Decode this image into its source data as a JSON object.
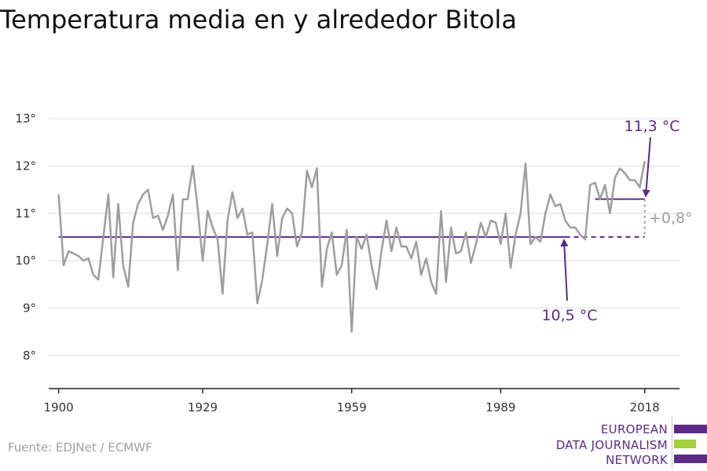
{
  "title": "Temperatura media en y alrededor Bitola",
  "source": "Fuente: EDJNet / ECMWF",
  "logo": {
    "lines": [
      "EUROPEAN",
      "DATA JOURNALISM",
      "NETWORK"
    ],
    "colors": {
      "purple": "#5b2a86",
      "green": "#a3d13a"
    }
  },
  "colors": {
    "series": "#9e9e9e",
    "baseline": "#5b2a86",
    "grid": "#dddddd",
    "axis": "#222222",
    "diff": "#9e9e9e"
  },
  "chart_data": {
    "type": "line",
    "title": "Temperatura media en y alrededor Bitola",
    "xlabel": "",
    "ylabel": "",
    "xlim": [
      1898,
      2025
    ],
    "ylim": [
      7.3,
      13.3
    ],
    "xticks": [
      1900,
      1929,
      1959,
      1989,
      2018
    ],
    "xtick_labels": [
      "1900",
      "1929",
      "1959",
      "1989",
      "2018"
    ],
    "yticks": [
      8,
      9,
      10,
      11,
      12,
      13
    ],
    "ytick_labels": [
      "8°",
      "9°",
      "10°",
      "11°",
      "12°",
      "13°"
    ],
    "grid": "horizontal",
    "x": [
      1900,
      1901,
      1902,
      1903,
      1904,
      1905,
      1906,
      1907,
      1908,
      1909,
      1910,
      1911,
      1912,
      1913,
      1914,
      1915,
      1916,
      1917,
      1918,
      1919,
      1920,
      1921,
      1922,
      1923,
      1924,
      1925,
      1926,
      1927,
      1928,
      1929,
      1930,
      1931,
      1932,
      1933,
      1934,
      1935,
      1936,
      1937,
      1938,
      1939,
      1940,
      1941,
      1942,
      1943,
      1944,
      1945,
      1946,
      1947,
      1948,
      1949,
      1950,
      1951,
      1952,
      1953,
      1954,
      1955,
      1956,
      1957,
      1958,
      1959,
      1960,
      1961,
      1962,
      1963,
      1964,
      1965,
      1966,
      1967,
      1968,
      1969,
      1970,
      1971,
      1972,
      1973,
      1974,
      1975,
      1976,
      1977,
      1978,
      1979,
      1980,
      1981,
      1982,
      1983,
      1984,
      1985,
      1986,
      1987,
      1988,
      1989,
      1990,
      1991,
      1992,
      1993,
      1994,
      1995,
      1996,
      1997,
      1998,
      1999,
      2000,
      2001,
      2002,
      2003,
      2004,
      2005,
      2006,
      2007,
      2008,
      2009,
      2010,
      2011,
      2012,
      2013,
      2014,
      2015,
      2016,
      2017,
      2018
    ],
    "series": [
      {
        "values": [
          11.4,
          9.9,
          10.2,
          10.15,
          10.1,
          10.0,
          10.05,
          9.7,
          9.6,
          10.5,
          11.4,
          9.65,
          11.2,
          9.9,
          9.45,
          10.8,
          11.2,
          11.4,
          11.5,
          10.9,
          10.95,
          10.65,
          10.95,
          11.4,
          9.8,
          11.3,
          11.3,
          12.0,
          11.1,
          10.0,
          11.05,
          10.7,
          10.45,
          9.3,
          10.85,
          11.45,
          10.9,
          11.1,
          10.55,
          10.6,
          9.1,
          9.6,
          10.35,
          11.2,
          10.1,
          10.9,
          11.1,
          11.0,
          10.3,
          10.6,
          11.9,
          11.55,
          11.95,
          9.45,
          10.25,
          10.6,
          9.7,
          9.9,
          10.65,
          8.5,
          10.5,
          10.25,
          10.55,
          9.9,
          9.4,
          10.2,
          10.85,
          10.2,
          10.7,
          10.3,
          10.3,
          10.05,
          10.4,
          9.7,
          10.05,
          9.55,
          9.3,
          11.05,
          9.55,
          10.7,
          10.15,
          10.2,
          10.6,
          9.95,
          10.35,
          10.8,
          10.5,
          10.85,
          10.8,
          10.35,
          11.0,
          9.85,
          10.55,
          11.0,
          12.05,
          10.35,
          10.5,
          10.4,
          11.0,
          11.4,
          11.15,
          11.2,
          10.85,
          10.7,
          10.7,
          10.55,
          10.45,
          11.6,
          11.65,
          11.3,
          11.6,
          11.0,
          11.75,
          11.95,
          11.85,
          11.7,
          11.7,
          11.55,
          12.1
        ]
      }
    ],
    "baseline": {
      "value": 10.5,
      "label": "10,5 °C"
    },
    "recent_mean": {
      "value": 11.3,
      "label": "11,3 °C",
      "x_start": 2008,
      "x_end": 2018
    },
    "difference_label": "+0,8°"
  }
}
